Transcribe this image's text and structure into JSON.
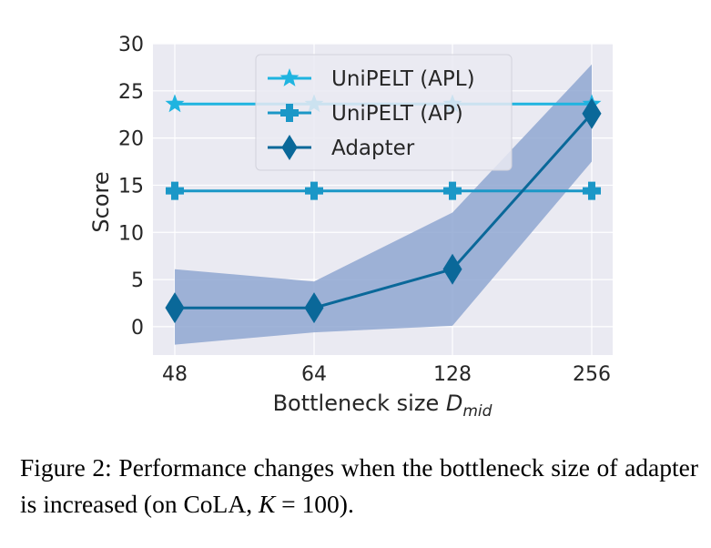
{
  "chart_data": {
    "type": "line",
    "xlabel_main": "Bottleneck size ",
    "xlabel_sym": "D",
    "xlabel_sub": "mid",
    "ylabel": "Score",
    "categories": [
      "48",
      "64",
      "128",
      "256"
    ],
    "ylim": [
      -3,
      30
    ],
    "yticks": [
      0,
      5,
      10,
      15,
      20,
      25,
      30
    ],
    "grid": true,
    "legend_position": "upper center",
    "series": [
      {
        "name": "UniPELT (APL)",
        "values": [
          23.6,
          23.6,
          23.6,
          23.6
        ],
        "color": "#1fb4e0",
        "marker": "star"
      },
      {
        "name": "UniPELT (AP)",
        "values": [
          14.4,
          14.4,
          14.4,
          14.4
        ],
        "color": "#1b97c7",
        "marker": "plus"
      },
      {
        "name": "Adapter",
        "values": [
          2.0,
          2.0,
          6.1,
          22.6
        ],
        "color": "#0a6899",
        "marker": "diamond",
        "band_low": [
          -1.9,
          -0.6,
          0.1,
          17.5
        ],
        "band_high": [
          6.1,
          4.8,
          12.1,
          27.8
        ],
        "band_color": "#8fa7d1"
      }
    ]
  },
  "caption": {
    "text_1": "Figure 2: Performance changes when the bottleneck size of adapter is increased (on CoLA, ",
    "math": "K",
    "text_2": " = 100)."
  }
}
